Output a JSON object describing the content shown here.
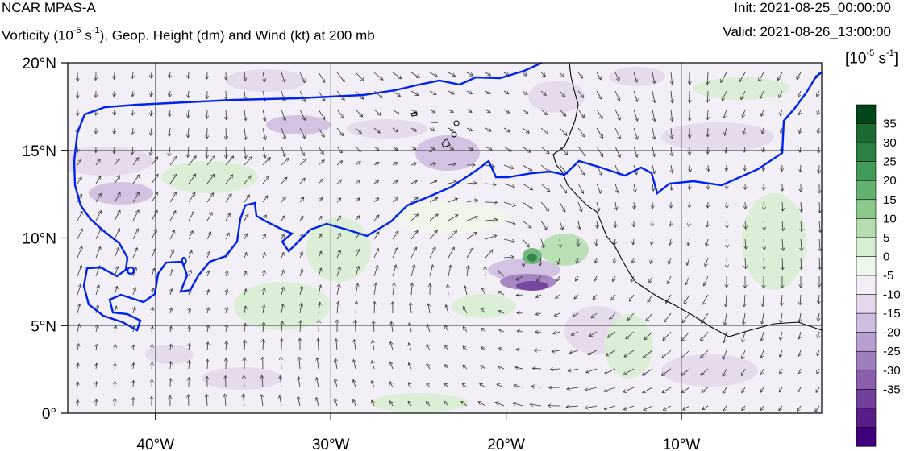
{
  "header": {
    "model": "NCAR MPAS-A",
    "subtitle_pre": "Vorticity (10",
    "subtitle_exp1": "-5",
    "subtitle_mid": " s",
    "subtitle_exp2": "-1",
    "subtitle_post": "), Geop. Height (dm) and Wind (kt) at 200 mb",
    "init": "Init: 2021-08-25_00:00:00",
    "valid": "Valid: 2021-08-26_13:00:00"
  },
  "colorbar": {
    "units_pre": "[10",
    "units_exp1": "-5",
    "units_mid": " s",
    "units_exp2": "-1",
    "units_post": "]",
    "labels": [
      "35",
      "30",
      "25",
      "20",
      "15",
      "10",
      "5",
      "0",
      "-5",
      "-10",
      "-15",
      "-20",
      "-25",
      "-30",
      "-35"
    ],
    "colors": [
      "#00441b",
      "#1b6a31",
      "#2b8143",
      "#3f9b57",
      "#62b16f",
      "#8bc98a",
      "#b5ddb0",
      "#d8eed3",
      "#eef7ec",
      "#f3eef6",
      "#e4d7ec",
      "#cfbde0",
      "#b89fd1",
      "#9e7dbd",
      "#8a5fae",
      "#70409c",
      "#581d87",
      "#3f007d"
    ]
  },
  "map": {
    "lat_labels": [
      "20°N",
      "15°N",
      "10°N",
      "5°N",
      "0°"
    ],
    "lon_labels": [
      "40°W",
      "30°W",
      "20°W",
      "10°W"
    ],
    "extent": {
      "lon_min": -45,
      "lon_max": -2,
      "lat_min": 0,
      "lat_max": 20
    },
    "gridline_lons": [
      -40,
      -30,
      -20,
      -10
    ],
    "gridline_lats": [
      5,
      10,
      15
    ],
    "contour_color": "#0022ee"
  }
}
